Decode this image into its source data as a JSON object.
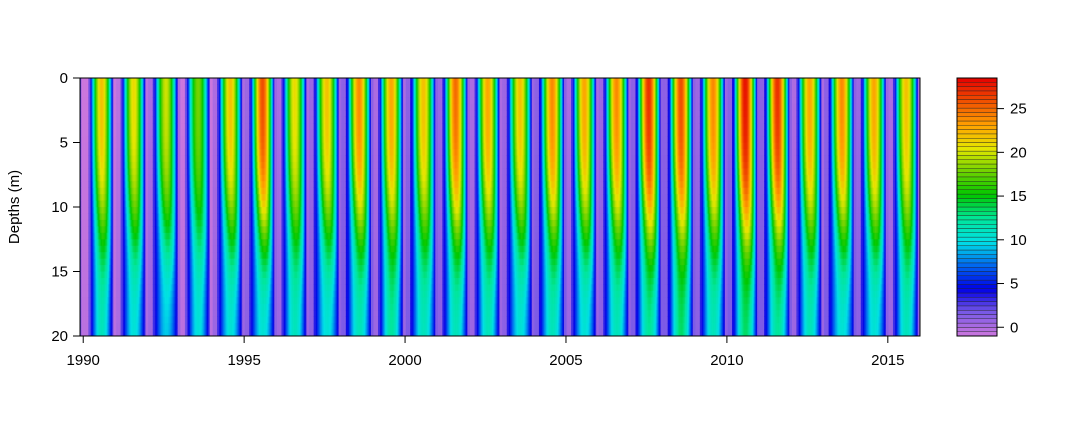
{
  "chart_data": {
    "type": "heatmap",
    "title": "",
    "xlabel": "",
    "ylabel": "Depths (m)",
    "xlim": [
      1989.9,
      2016.0
    ],
    "ylim": [
      20,
      0
    ],
    "x_ticks": [
      1990,
      1995,
      2000,
      2005,
      2010,
      2015
    ],
    "x_tick_labels": [
      "1990",
      "1995",
      "2000",
      "2005",
      "2010",
      "2015"
    ],
    "y_ticks": [
      0,
      5,
      10,
      15,
      20
    ],
    "y_tick_labels": [
      "0",
      "5",
      "10",
      "15",
      "20"
    ],
    "years": [
      1990,
      1991,
      1992,
      1993,
      1994,
      1995,
      1996,
      1997,
      1998,
      1999,
      2000,
      2001,
      2002,
      2003,
      2004,
      2005,
      2006,
      2007,
      2008,
      2009,
      2010,
      2011,
      2012,
      2013,
      2014,
      2015
    ],
    "summer_surface_temperature": [
      22,
      21,
      20,
      18,
      22,
      26,
      21,
      22,
      24,
      23,
      22,
      25,
      23,
      22,
      24,
      23,
      24,
      27,
      26,
      24,
      28,
      27,
      23,
      24,
      23,
      22
    ],
    "summer_bottom_temperature": [
      11,
      10,
      9,
      10,
      10,
      10,
      11,
      10,
      11,
      12,
      11,
      11,
      11,
      10,
      11,
      10,
      11,
      12,
      13,
      11,
      13,
      12,
      11,
      10,
      10,
      11
    ],
    "winter_min_temperature": [
      -1,
      -0.5,
      0,
      -1,
      0,
      0.5,
      0,
      0.5,
      1,
      0,
      1,
      0.5,
      0,
      0.5,
      1,
      0,
      0.5,
      1,
      1,
      0.5,
      1,
      1,
      0,
      1,
      0.5,
      0
    ],
    "legend": {
      "title": "",
      "placement": "right",
      "range": [
        -1,
        28.5
      ],
      "ticks": [
        0,
        5,
        10,
        15,
        20,
        25
      ],
      "tick_labels": [
        "0",
        "5",
        "10",
        "15",
        "20",
        "25"
      ]
    },
    "colors": {
      "scale": [
        "#cc77dd",
        "#7a5ae6",
        "#0000e6",
        "#0066f0",
        "#00e0e6",
        "#00e69a",
        "#00c800",
        "#6ed200",
        "#e6e600",
        "#ffa000",
        "#f05000",
        "#e60000"
      ],
      "frame": "#000000"
    }
  }
}
